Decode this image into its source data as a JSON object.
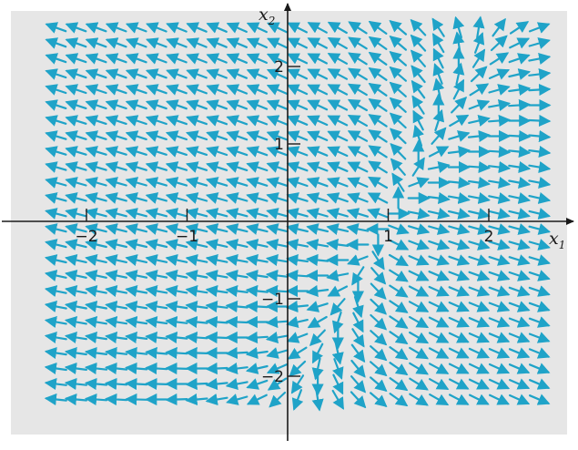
{
  "chart_data": {
    "type": "vector-field",
    "title": "",
    "xlabel": "x",
    "xlabel_sub": "1",
    "ylabel": "x",
    "ylabel_sub": "2",
    "xlim": [
      -2.6,
      2.8
    ],
    "ylim": [
      -2.65,
      2.7
    ],
    "xticks": [
      {
        "value": -2,
        "label": "−2"
      },
      {
        "value": -1,
        "label": "−1"
      },
      {
        "value": 1,
        "label": "1"
      },
      {
        "value": 2,
        "label": "2"
      }
    ],
    "yticks": [
      {
        "value": 2,
        "label": "2"
      },
      {
        "value": 1,
        "label": "1"
      },
      {
        "value": -1,
        "label": "−1"
      },
      {
        "value": -2,
        "label": "−2"
      }
    ],
    "system": "dx1/dt = 3*x1 - x2 - 3; dx2/dt = -x1 + x2 + 1 (direction field, unit-length arrows)",
    "grid_spacing": {
      "dx": 0.2,
      "dy": 0.2
    },
    "grid": false,
    "legend": "none"
  },
  "colors": {
    "arrow": "#1fa3c8",
    "plot_background": "#e6e6e6",
    "axis": "#1a1a1a"
  }
}
